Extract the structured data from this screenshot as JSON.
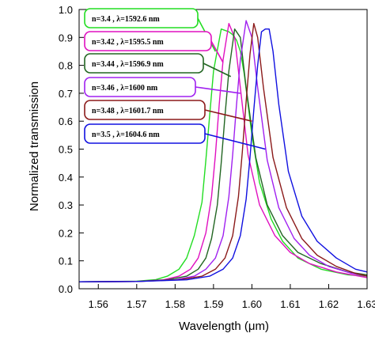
{
  "chart_data": {
    "type": "line",
    "xlabel": "Wavelength (μm)",
    "ylabel": "Normalized transmission",
    "xlim": [
      1.555,
      1.63
    ],
    "ylim": [
      0.0,
      1.0
    ],
    "xticks": [
      "1.56",
      "1.57",
      "1.58",
      "1.59",
      "1.60",
      "1.61",
      "1.62",
      "1.63"
    ],
    "yticks": [
      "0.0",
      "0.1",
      "0.2",
      "0.3",
      "0.4",
      "0.5",
      "0.6",
      "0.7",
      "0.8",
      "0.9",
      "1.0"
    ],
    "grid": false,
    "series": [
      {
        "label": "n=3.4 , λ=1592.6 nm",
        "color": "#22dd22",
        "x": [
          1.555,
          1.57,
          1.575,
          1.578,
          1.581,
          1.583,
          1.585,
          1.587,
          1.588,
          1.589,
          1.59,
          1.592,
          1.594,
          1.595,
          1.596,
          1.597,
          1.598,
          1.6,
          1.602,
          1.605,
          1.608,
          1.612,
          1.618,
          1.625,
          1.63
        ],
        "y": [
          0.025,
          0.027,
          0.033,
          0.045,
          0.07,
          0.11,
          0.19,
          0.31,
          0.46,
          0.62,
          0.78,
          0.93,
          0.92,
          0.91,
          0.89,
          0.85,
          0.77,
          0.55,
          0.38,
          0.25,
          0.17,
          0.11,
          0.07,
          0.05,
          0.045
        ]
      },
      {
        "label": "n=3.42 , λ=1595.5 nm",
        "color": "#e010c0",
        "x": [
          1.555,
          1.57,
          1.577,
          1.581,
          1.584,
          1.586,
          1.588,
          1.5895,
          1.5905,
          1.5915,
          1.5925,
          1.594,
          1.5955,
          1.597,
          1.599,
          1.602,
          1.606,
          1.61,
          1.615,
          1.622,
          1.63
        ],
        "y": [
          0.025,
          0.026,
          0.032,
          0.045,
          0.07,
          0.11,
          0.2,
          0.33,
          0.48,
          0.66,
          0.82,
          0.95,
          0.9,
          0.72,
          0.48,
          0.3,
          0.19,
          0.13,
          0.09,
          0.06,
          0.04
        ]
      },
      {
        "label": "n=3.44 , λ=1596.9 nm",
        "color": "#226622",
        "x": [
          1.555,
          1.57,
          1.578,
          1.583,
          1.586,
          1.588,
          1.5895,
          1.591,
          1.592,
          1.593,
          1.594,
          1.5955,
          1.597,
          1.5985,
          1.601,
          1.604,
          1.608,
          1.612,
          1.618,
          1.625,
          1.63
        ],
        "y": [
          0.025,
          0.026,
          0.032,
          0.045,
          0.07,
          0.11,
          0.18,
          0.3,
          0.45,
          0.62,
          0.78,
          0.93,
          0.9,
          0.72,
          0.47,
          0.3,
          0.19,
          0.13,
          0.09,
          0.06,
          0.05
        ]
      },
      {
        "label": "n=3.46 , λ=1600 nm",
        "color": "#a020f0",
        "x": [
          1.555,
          1.57,
          1.58,
          1.585,
          1.588,
          1.5905,
          1.5925,
          1.594,
          1.595,
          1.596,
          1.597,
          1.5985,
          1.6,
          1.6015,
          1.604,
          1.607,
          1.611,
          1.615,
          1.62,
          1.626,
          1.63
        ],
        "y": [
          0.025,
          0.026,
          0.032,
          0.045,
          0.07,
          0.11,
          0.19,
          0.33,
          0.48,
          0.66,
          0.82,
          0.96,
          0.9,
          0.72,
          0.46,
          0.29,
          0.18,
          0.12,
          0.08,
          0.055,
          0.045
        ]
      },
      {
        "label": "n=3.48 , λ=1601.7 nm",
        "color": "#8b1a1a",
        "x": [
          1.555,
          1.57,
          1.581,
          1.587,
          1.5905,
          1.593,
          1.595,
          1.5965,
          1.5975,
          1.5985,
          1.5995,
          1.6005,
          1.6015,
          1.603,
          1.6055,
          1.609,
          1.613,
          1.617,
          1.622,
          1.627,
          1.63
        ],
        "y": [
          0.025,
          0.026,
          0.032,
          0.045,
          0.07,
          0.11,
          0.19,
          0.33,
          0.49,
          0.67,
          0.84,
          0.95,
          0.9,
          0.72,
          0.47,
          0.29,
          0.18,
          0.12,
          0.08,
          0.055,
          0.045
        ]
      },
      {
        "label": "n=3.5 , λ=1604.6 nm",
        "color": "#1010e0",
        "x": [
          1.555,
          1.57,
          1.583,
          1.589,
          1.5925,
          1.595,
          1.597,
          1.5985,
          1.5995,
          1.6005,
          1.6015,
          1.6025,
          1.6035,
          1.6045,
          1.6055,
          1.607,
          1.6095,
          1.613,
          1.617,
          1.622,
          1.627,
          1.63
        ],
        "y": [
          0.025,
          0.026,
          0.032,
          0.045,
          0.07,
          0.11,
          0.19,
          0.32,
          0.47,
          0.64,
          0.8,
          0.92,
          0.93,
          0.93,
          0.85,
          0.66,
          0.42,
          0.26,
          0.17,
          0.11,
          0.07,
          0.06
        ]
      }
    ]
  }
}
